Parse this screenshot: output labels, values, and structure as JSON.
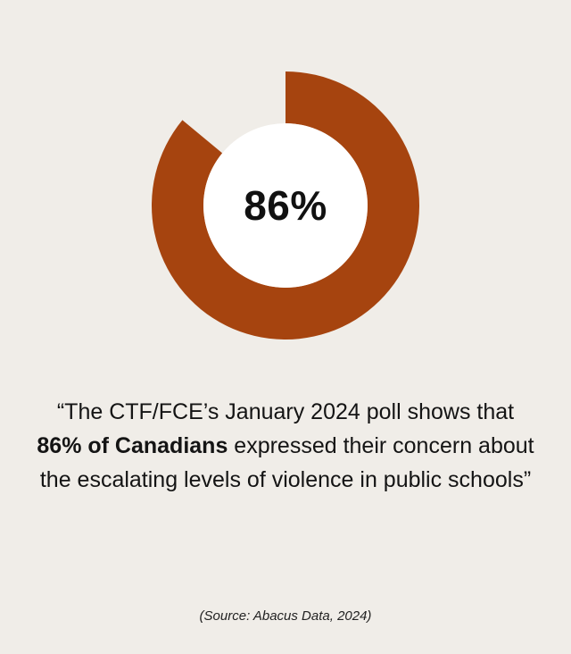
{
  "chart_data": {
    "type": "pie",
    "variant": "donut",
    "values": [
      86,
      14
    ],
    "center_label": "86%",
    "title": ""
  },
  "colors": {
    "background": "#f0ede8",
    "ring": "#a6440f",
    "inner": "#ffffff",
    "text": "#141414"
  },
  "quote": {
    "part1": "“The CTF/FCE’s January 2024 poll shows that ",
    "bold": "86% of Canadians",
    "part2": " expressed their concern about the escalating levels of violence in public schools”"
  },
  "source": "(Source: Abacus Data, 2024)"
}
